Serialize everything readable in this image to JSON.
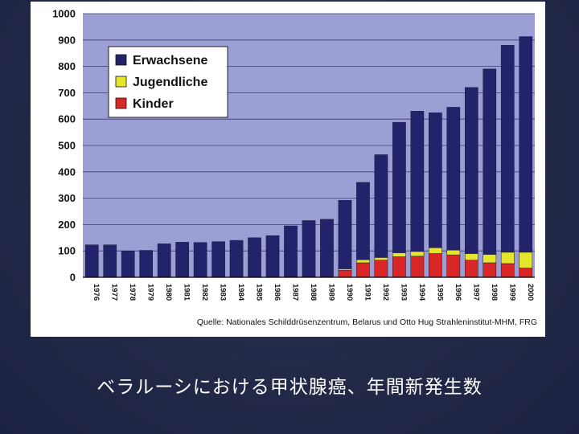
{
  "caption": "ベラルーシにおける甲状腺癌、年間新発生数",
  "source": "Quelle: Nationales Schilddrüsenzentrum, Belarus und Otto Hug Strahleninstitut-MHM, FRG",
  "colors": {
    "plot_background": "#9b9fd4",
    "erwachsene": "#23236b",
    "jugendliche": "#e5e52b",
    "kinder": "#d92727",
    "slide_background": "#262d4b"
  },
  "chart_data": {
    "type": "bar",
    "stacked": true,
    "title": "",
    "xlabel": "",
    "ylabel": "",
    "ylim": [
      0,
      1000
    ],
    "yticks": [
      0,
      100,
      200,
      300,
      400,
      500,
      600,
      700,
      800,
      900,
      1000
    ],
    "grid": true,
    "legend_position": "top-left",
    "categories": [
      "1976",
      "1977",
      "1978",
      "1979",
      "1980",
      "1981",
      "1982",
      "1983",
      "1984",
      "1985",
      "1986",
      "1987",
      "1988",
      "1989",
      "1990",
      "1991",
      "1992",
      "1993",
      "1994",
      "1995",
      "1996",
      "1997",
      "1998",
      "1999",
      "2000"
    ],
    "series": [
      {
        "name": "Kinder",
        "color": "#d92727",
        "values": [
          0,
          0,
          0,
          0,
          0,
          0,
          0,
          0,
          0,
          0,
          0,
          2,
          2,
          2,
          27,
          55,
          65,
          78,
          80,
          90,
          85,
          65,
          55,
          52,
          35
        ]
      },
      {
        "name": "Jugendliche",
        "color": "#e5e52b",
        "values": [
          0,
          0,
          0,
          0,
          0,
          0,
          0,
          0,
          0,
          0,
          0,
          0,
          0,
          0,
          5,
          12,
          10,
          15,
          18,
          22,
          18,
          25,
          32,
          43,
          60
        ]
      },
      {
        "name": "Erwachsene",
        "color": "#23236b",
        "values": [
          123,
          123,
          100,
          102,
          127,
          133,
          132,
          135,
          140,
          150,
          158,
          193,
          213,
          218,
          260,
          293,
          390,
          495,
          532,
          512,
          542,
          630,
          703,
          785,
          818
        ]
      }
    ]
  }
}
